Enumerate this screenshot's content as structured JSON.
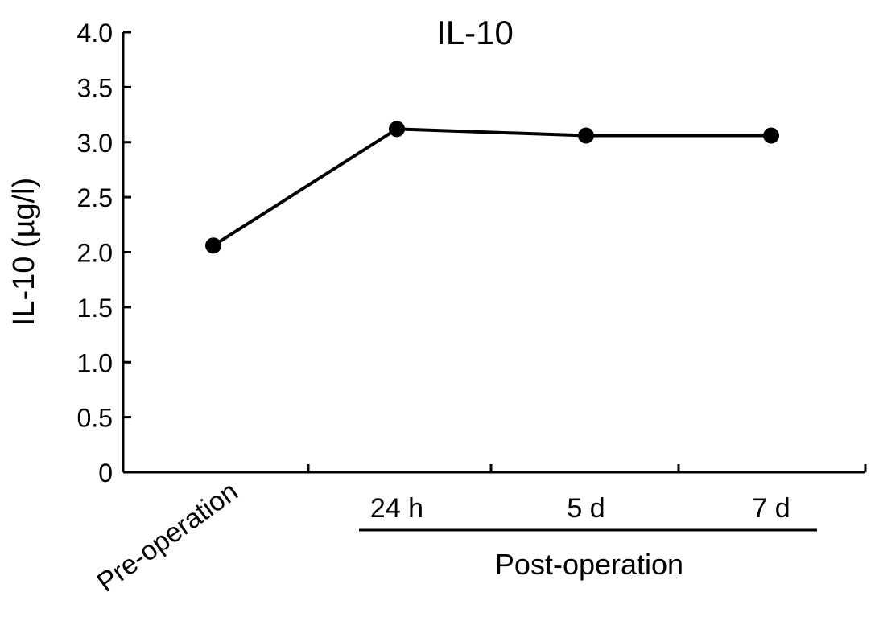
{
  "chart_data": {
    "type": "line",
    "title": "IL-10",
    "ylabel": "IL-10 (µg/l)",
    "xlabel": "",
    "ylim": [
      0,
      4.0
    ],
    "y_ticks": [
      "0",
      "0.5",
      "1.0",
      "1.5",
      "2.0",
      "2.5",
      "3.0",
      "3.5",
      "4.0"
    ],
    "y_tick_values": [
      0,
      0.5,
      1.0,
      1.5,
      2.0,
      2.5,
      3.0,
      3.5,
      4.0
    ],
    "categories": [
      "Pre-operation",
      "24 h",
      "5 d",
      "7 d"
    ],
    "group_label": "Post-operation",
    "values": [
      2.06,
      3.12,
      3.06,
      3.06
    ],
    "grid": false,
    "legend": "none",
    "line_color": "#000000",
    "marker_color": "#000000"
  }
}
